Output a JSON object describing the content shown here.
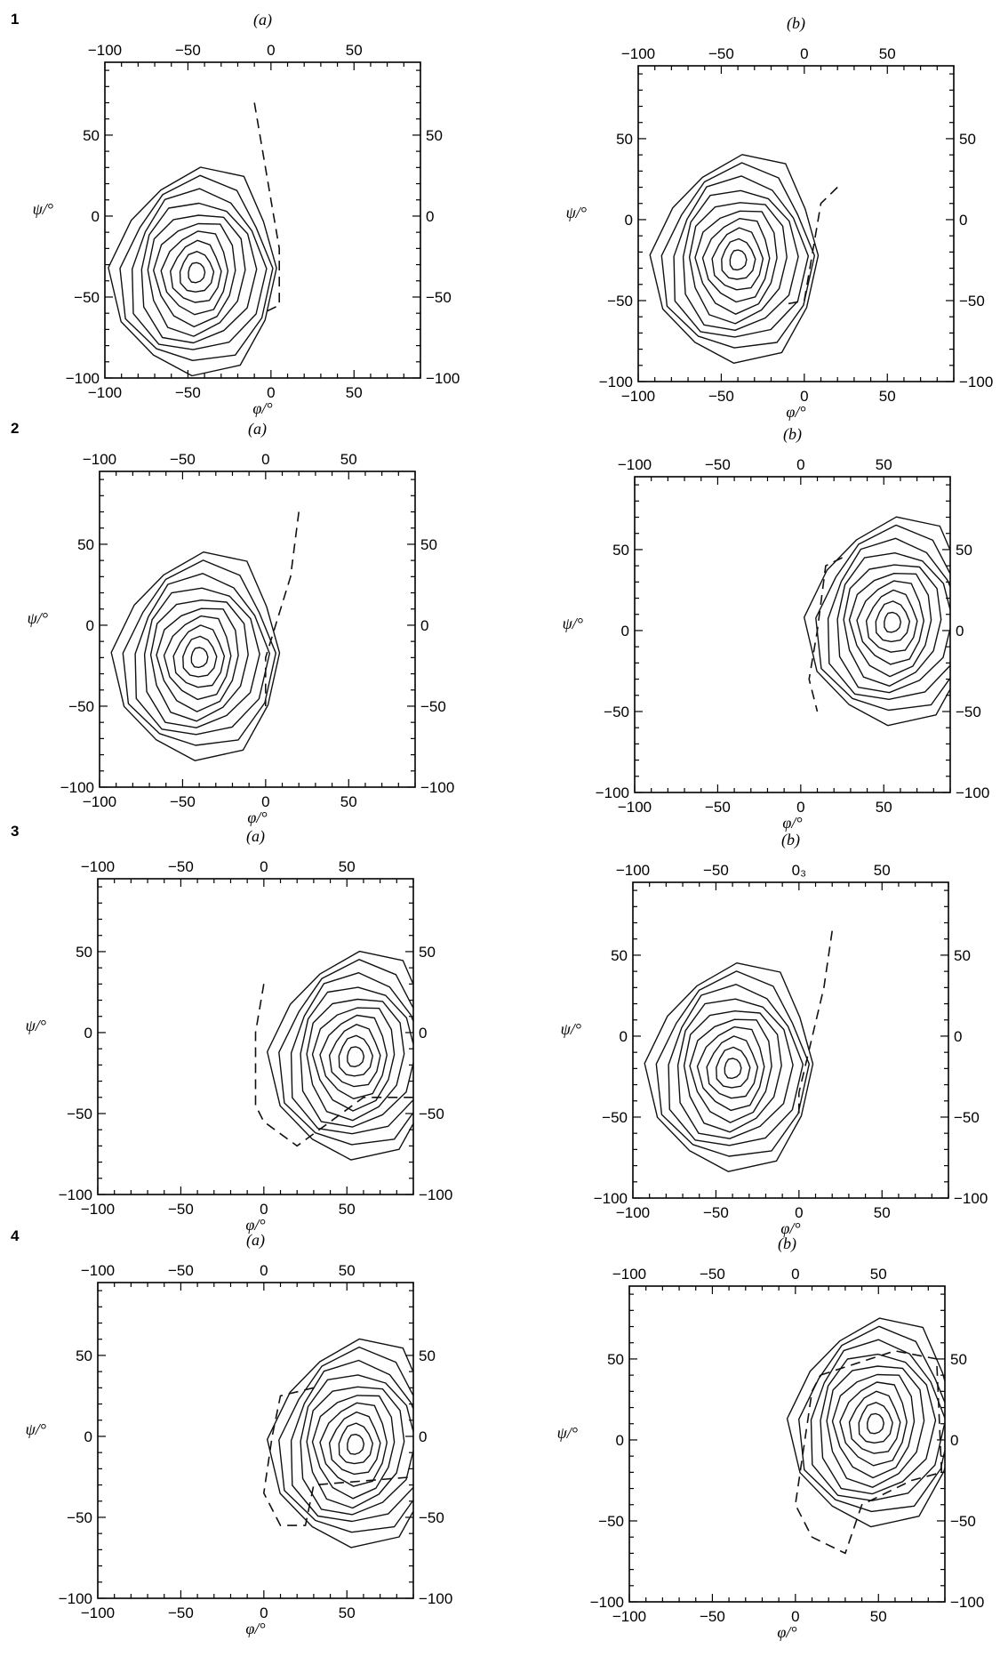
{
  "figure": {
    "rows": [
      {
        "label": "1"
      },
      {
        "label": "2"
      },
      {
        "label": "3"
      },
      {
        "label": "4"
      }
    ]
  },
  "chart_data": [
    {
      "type": "line",
      "row": "1",
      "panel_label": "(a)",
      "xlabel": "φ/°",
      "ylabel": "ψ/°",
      "xlim": [
        -100,
        90
      ],
      "ylim": [
        -100,
        95
      ],
      "xticks": [
        -100,
        -50,
        0,
        50
      ],
      "yticks": [
        -100,
        -50,
        0,
        50
      ],
      "x_tick_labels_top": [
        "-100",
        "-50",
        "0",
        "50"
      ],
      "minimum": [
        -45,
        -35
      ],
      "dashed_boundary": [
        [
          -10,
          70
        ],
        [
          -5,
          40
        ],
        [
          0,
          10
        ],
        [
          5,
          -20
        ],
        [
          5,
          -55
        ],
        [
          -5,
          -60
        ]
      ]
    },
    {
      "type": "line",
      "row": "1",
      "panel_label": "(b)",
      "xlabel": "φ/°",
      "ylabel": "ψ/°",
      "xlim": [
        -100,
        90
      ],
      "ylim": [
        -100,
        95
      ],
      "xticks": [
        -100,
        -50,
        0,
        50
      ],
      "yticks": [
        -100,
        -50,
        0,
        50
      ],
      "x_tick_labels_top": [
        "-100",
        "-50",
        "0",
        "50"
      ],
      "minimum": [
        -40,
        -25
      ],
      "dashed_boundary": [
        [
          20,
          20
        ],
        [
          10,
          10
        ],
        [
          5,
          -20
        ],
        [
          0,
          -50
        ],
        [
          -10,
          -52
        ]
      ]
    },
    {
      "type": "line",
      "row": "2",
      "panel_label": "(a)",
      "xlabel": "φ/°",
      "ylabel": "ψ/°",
      "xlim": [
        -100,
        90
      ],
      "ylim": [
        -100,
        95
      ],
      "xticks": [
        -100,
        -50,
        0,
        50
      ],
      "yticks": [
        -100,
        -50,
        0,
        50
      ],
      "x_tick_labels_top": [
        "-100",
        "-50",
        "0",
        "50"
      ],
      "minimum": [
        -40,
        -20
      ],
      "dashed_boundary": [
        [
          20,
          70
        ],
        [
          15,
          30
        ],
        [
          0,
          -20
        ],
        [
          0,
          -50
        ]
      ]
    },
    {
      "type": "line",
      "row": "2",
      "panel_label": "(b)",
      "xlabel": "φ/°",
      "ylabel": "ψ/°",
      "xlim": [
        -100,
        90
      ],
      "ylim": [
        -100,
        95
      ],
      "xticks": [
        -100,
        -50,
        0,
        50
      ],
      "yticks": [
        -100,
        -50,
        0,
        50
      ],
      "x_tick_labels_top": [
        "-100",
        "-50",
        "0",
        "50"
      ],
      "minimum": [
        55,
        5
      ],
      "dashed_boundary": [
        [
          25,
          45
        ],
        [
          15,
          40
        ],
        [
          10,
          0
        ],
        [
          5,
          -30
        ],
        [
          10,
          -50
        ]
      ]
    },
    {
      "type": "line",
      "row": "3",
      "panel_label": "(a)",
      "xlabel": "φ/°",
      "ylabel": "ψ/°",
      "xlim": [
        -100,
        90
      ],
      "ylim": [
        -100,
        95
      ],
      "xticks": [
        -100,
        -50,
        0,
        50
      ],
      "yticks": [
        -100,
        -50,
        0,
        50
      ],
      "x_tick_labels_top": [
        "-100",
        "-50",
        "0",
        "50"
      ],
      "minimum": [
        55,
        -15
      ],
      "dashed_boundary": [
        [
          0,
          30
        ],
        [
          -5,
          0
        ],
        [
          -5,
          -45
        ],
        [
          0,
          -55
        ],
        [
          20,
          -70
        ],
        [
          40,
          -55
        ],
        [
          60,
          -40
        ],
        [
          90,
          -40
        ]
      ]
    },
    {
      "type": "line",
      "row": "3",
      "panel_label": "(b)",
      "xlabel": "φ/°",
      "ylabel": "ψ/°",
      "xlim": [
        -100,
        90
      ],
      "ylim": [
        -100,
        95
      ],
      "xticks": [
        -100,
        -50,
        0,
        50
      ],
      "yticks": [
        -100,
        -50,
        0,
        50
      ],
      "x_tick_labels_top": [
        "-100",
        "-50",
        "0₃",
        "50"
      ],
      "minimum": [
        -40,
        -20
      ],
      "dashed_boundary": [
        [
          20,
          65
        ],
        [
          15,
          30
        ],
        [
          0,
          -35
        ],
        [
          0,
          -50
        ]
      ]
    },
    {
      "type": "line",
      "row": "4",
      "panel_label": "(a)",
      "xlabel": "φ/°",
      "ylabel": "ψ/°",
      "xlim": [
        -100,
        90
      ],
      "ylim": [
        -100,
        95
      ],
      "xticks": [
        -100,
        -50,
        0,
        50
      ],
      "yticks": [
        -100,
        -50,
        0,
        50
      ],
      "x_tick_labels_top": [
        "-100",
        "-50",
        "0",
        "50"
      ],
      "minimum": [
        55,
        -5
      ],
      "dashed_boundary": [
        [
          30,
          30
        ],
        [
          10,
          25
        ],
        [
          5,
          0
        ],
        [
          0,
          -35
        ],
        [
          10,
          -55
        ],
        [
          25,
          -55
        ],
        [
          30,
          -30
        ],
        [
          90,
          -25
        ]
      ]
    },
    {
      "type": "line",
      "row": "4",
      "panel_label": "(b)",
      "xlabel": "φ/°",
      "ylabel": "ψ/°",
      "xlim": [
        -100,
        90
      ],
      "ylim": [
        -100,
        95
      ],
      "xticks": [
        -100,
        -50,
        0,
        50
      ],
      "yticks": [
        -100,
        -50,
        0,
        50
      ],
      "x_tick_labels_top": [
        "-100",
        "-50",
        "0",
        "50"
      ],
      "minimum": [
        48,
        10
      ],
      "dashed_boundary": [
        [
          15,
          40
        ],
        [
          60,
          55
        ],
        [
          85,
          50
        ],
        [
          88,
          -20
        ],
        [
          70,
          -25
        ],
        [
          40,
          -40
        ],
        [
          30,
          -70
        ],
        [
          10,
          -60
        ],
        [
          0,
          -40
        ],
        [
          10,
          30
        ],
        [
          15,
          40
        ]
      ]
    }
  ]
}
